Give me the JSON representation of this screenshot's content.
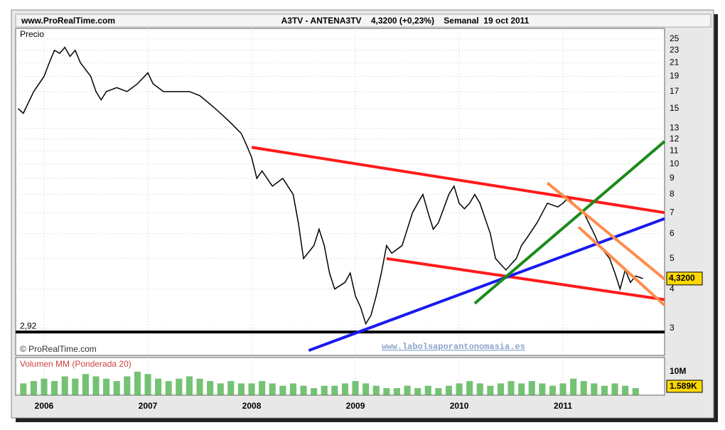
{
  "chart_data": {
    "type": "line",
    "site": "www.ProRealTime.com",
    "title": "A3TV - ANTENA3TV    4,3200 (+0,23%)    Semanal  19 oct 2011",
    "panel_label": "Precio",
    "copyright": "© ProRealTime.com",
    "watermark": "www.labolsaporantonomasia.es",
    "log_scale": true,
    "grid": true,
    "xlim": [
      2005.726,
      2011.979
    ],
    "xticks": [
      2006,
      2007,
      2008,
      2009,
      2010,
      2011
    ],
    "ylim": [
      2.46,
      27
    ],
    "yticks": [
      3,
      4,
      5,
      6,
      7,
      8,
      9,
      10,
      11,
      12,
      13,
      15,
      17,
      19,
      21,
      23,
      25
    ],
    "series": [
      {
        "name": "Precio",
        "color": "#000000",
        "x": [
          2005.75,
          2005.8,
          2005.9,
          2006.0,
          2006.05,
          2006.1,
          2006.15,
          2006.2,
          2006.25,
          2006.3,
          2006.35,
          2006.45,
          2006.5,
          2006.55,
          2006.6,
          2006.7,
          2006.8,
          2006.9,
          2007.0,
          2007.05,
          2007.15,
          2007.25,
          2007.4,
          2007.5,
          2007.6,
          2007.7,
          2007.8,
          2007.9,
          2007.95,
          2008.0,
          2008.05,
          2008.1,
          2008.2,
          2008.3,
          2008.4,
          2008.45,
          2008.5,
          2008.6,
          2008.65,
          2008.7,
          2008.75,
          2008.8,
          2008.9,
          2008.95,
          2009.0,
          2009.05,
          2009.1,
          2009.15,
          2009.2,
          2009.25,
          2009.3,
          2009.35,
          2009.45,
          2009.55,
          2009.6,
          2009.65,
          2009.7,
          2009.75,
          2009.8,
          2009.9,
          2009.95,
          2010.0,
          2010.05,
          2010.1,
          2010.15,
          2010.2,
          2010.3,
          2010.35,
          2010.45,
          2010.55,
          2010.6,
          2010.65,
          2010.75,
          2010.85,
          2010.95,
          2011.0,
          2011.05,
          2011.1,
          2011.2,
          2011.3,
          2011.35,
          2011.45,
          2011.5,
          2011.55,
          2011.6,
          2011.65,
          2011.7,
          2011.77
        ],
        "values": [
          15,
          14.5,
          17,
          19,
          21,
          23,
          22.5,
          23.5,
          22,
          23,
          21,
          19,
          17,
          16,
          17,
          17.5,
          17,
          18,
          19.5,
          18,
          17,
          17,
          17,
          16.5,
          15.5,
          14.5,
          13.5,
          12.5,
          11.5,
          10.5,
          9,
          9.5,
          8.5,
          9,
          8,
          6.5,
          5,
          5.5,
          6.2,
          5.5,
          4.5,
          4,
          4.2,
          4.5,
          3.8,
          3.5,
          3.1,
          3.3,
          3.8,
          4.5,
          5.5,
          5.2,
          5.5,
          7,
          7.5,
          8,
          7,
          6.2,
          6.5,
          8,
          8.5,
          7.5,
          7.2,
          7.5,
          8,
          7.5,
          6,
          5,
          4.6,
          5,
          5.5,
          5.8,
          6.5,
          7.5,
          7.3,
          7.5,
          7.8,
          7.5,
          7,
          6,
          5.5,
          5,
          4.5,
          4,
          4.6,
          4.2,
          4.4,
          4.32
        ]
      }
    ],
    "last": {
      "value": 4.32,
      "label": "4,3200"
    },
    "support": {
      "value": 2.92,
      "label": "2,92"
    },
    "lines": [
      {
        "x1": 2008.0,
        "y1": 11.3,
        "x2": 2011.979,
        "y2": 7.0,
        "color": "#ff1a1a"
      },
      {
        "x1": 2009.3,
        "y1": 5.0,
        "x2": 2011.979,
        "y2": 3.7,
        "color": "#ff1a1a"
      },
      {
        "x1": 2008.55,
        "y1": 2.55,
        "x2": 2011.979,
        "y2": 6.7,
        "color": "#1a1aee"
      },
      {
        "x1": 2010.15,
        "y1": 3.6,
        "x2": 2011.979,
        "y2": 11.8,
        "color": "#1a8a1a"
      },
      {
        "x1": 2010.85,
        "y1": 8.7,
        "x2": 2011.979,
        "y2": 4.3,
        "color": "#ff8c4a"
      },
      {
        "x1": 2011.15,
        "y1": 6.3,
        "x2": 2011.979,
        "y2": 3.55,
        "color": "#ff8c4a"
      }
    ],
    "volume": {
      "name": "Volumen MM (Ponderada 20)",
      "color": "#3aa83a",
      "x": [
        2005.8,
        2005.9,
        2006.0,
        2006.1,
        2006.2,
        2006.3,
        2006.4,
        2006.5,
        2006.6,
        2006.7,
        2006.8,
        2006.9,
        2007.0,
        2007.1,
        2007.2,
        2007.3,
        2007.4,
        2007.5,
        2007.6,
        2007.7,
        2007.8,
        2007.9,
        2008.0,
        2008.1,
        2008.2,
        2008.3,
        2008.4,
        2008.5,
        2008.6,
        2008.7,
        2008.8,
        2008.9,
        2009.0,
        2009.1,
        2009.2,
        2009.3,
        2009.4,
        2009.5,
        2009.6,
        2009.7,
        2009.8,
        2009.9,
        2010.0,
        2010.1,
        2010.2,
        2010.3,
        2010.4,
        2010.5,
        2010.6,
        2010.7,
        2010.8,
        2010.9,
        2011.0,
        2011.1,
        2011.2,
        2011.3,
        2011.4,
        2011.5,
        2011.6,
        2011.7
      ],
      "values": [
        5,
        6,
        7,
        6,
        8,
        7,
        9,
        8,
        7,
        6,
        8,
        10,
        9,
        7,
        6,
        7,
        8,
        7,
        6,
        5,
        6,
        5,
        5,
        6,
        5,
        4,
        5,
        4,
        3,
        4,
        4,
        5,
        6,
        5,
        4,
        3,
        3,
        4,
        3,
        4,
        3,
        4,
        5,
        6,
        5,
        4,
        5,
        6,
        5,
        6,
        5,
        4,
        5,
        7,
        6,
        5,
        4,
        5,
        4,
        3
      ],
      "ylim": [
        0,
        16
      ],
      "yticks": [
        {
          "value": 10,
          "label": "10M"
        }
      ],
      "last_label": "1.589K"
    }
  }
}
